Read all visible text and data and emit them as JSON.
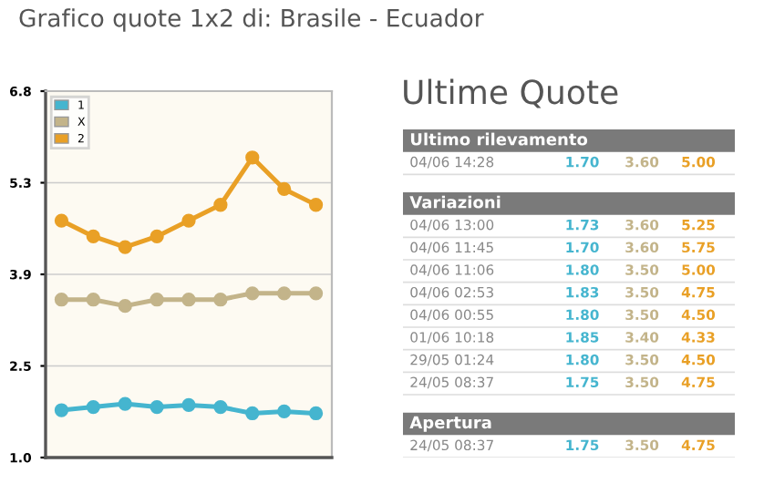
{
  "chart_data": [
    {
      "type": "line",
      "title": "Grafico quote 1x2 di: Brasile - Ecuador",
      "categories": [
        null,
        null,
        null,
        null,
        null,
        null,
        null,
        null,
        null
      ],
      "series": [
        {
          "name": "1",
          "color": "#45b5cf",
          "values": [
            1.75,
            1.8,
            1.85,
            1.8,
            1.83,
            1.8,
            1.7,
            1.73,
            1.7
          ]
        },
        {
          "name": "X",
          "color": "#c3b48a",
          "values": [
            3.5,
            3.5,
            3.4,
            3.5,
            3.5,
            3.5,
            3.6,
            3.6,
            3.6
          ]
        },
        {
          "name": "2",
          "color": "#e9a026",
          "values": [
            4.75,
            4.5,
            4.33,
            4.5,
            4.75,
            5.0,
            5.75,
            5.25,
            5.0
          ]
        }
      ],
      "ylim": [
        1.0,
        6.8
      ],
      "yticks": [
        {
          "value": 1.0,
          "label": "1.0"
        },
        {
          "value": 2.45,
          "label": "2.5"
        },
        {
          "value": 3.9,
          "label": "3.9"
        },
        {
          "value": 5.35,
          "label": "5.3"
        },
        {
          "value": 6.8,
          "label": "6.8"
        }
      ],
      "grid": "y",
      "legend": "top left",
      "marker": "circle",
      "line_style": "solid",
      "tick_labels": "y"
    },
    {
      "type": "other",
      "title": "Ultime Quote",
      "annotations": [
        "Ultimo rilevamento",
        "Variazioni",
        "Apertura"
      ],
      "categories": [
        null,
        "04/06 14:28",
        null,
        "04/06 13:00",
        "04/06 11:45",
        "04/06 11:06",
        "04/06 02:53",
        "04/06 00:55",
        "01/06 10:18",
        "29/05 01:24",
        "24/05 08:37",
        null,
        "24/05 08:37"
      ],
      "series": [
        {
          "color": "#45b5cf",
          "values": [
            null,
            1.7,
            null,
            1.73,
            1.7,
            1.8,
            1.83,
            1.8,
            1.85,
            1.8,
            1.75,
            null,
            1.75
          ],
          "value_labels": [
            null,
            "1.70",
            null,
            "1.73",
            "1.70",
            "1.80",
            "1.83",
            "1.80",
            "1.85",
            "1.80",
            "1.75",
            null,
            "1.75"
          ]
        },
        {
          "color": "#c3b48a",
          "values": [
            null,
            3.6,
            null,
            3.6,
            3.6,
            3.5,
            3.5,
            3.5,
            3.4,
            3.5,
            3.5,
            null,
            3.5
          ],
          "value_labels": [
            null,
            "3.60",
            null,
            "3.60",
            "3.60",
            "3.50",
            "3.50",
            "3.50",
            "3.40",
            "3.50",
            "3.50",
            null,
            "3.50"
          ]
        },
        {
          "color": "#e9a026",
          "values": [
            null,
            5.0,
            null,
            5.25,
            5.75,
            5.0,
            4.75,
            4.5,
            4.33,
            4.5,
            4.75,
            null,
            4.75
          ],
          "value_labels": [
            null,
            "5.00",
            null,
            "5.25",
            "5.75",
            "5.00",
            "4.75",
            "4.50",
            "4.33",
            "4.50",
            "4.75",
            null,
            "4.75"
          ]
        }
      ]
    }
  ]
}
